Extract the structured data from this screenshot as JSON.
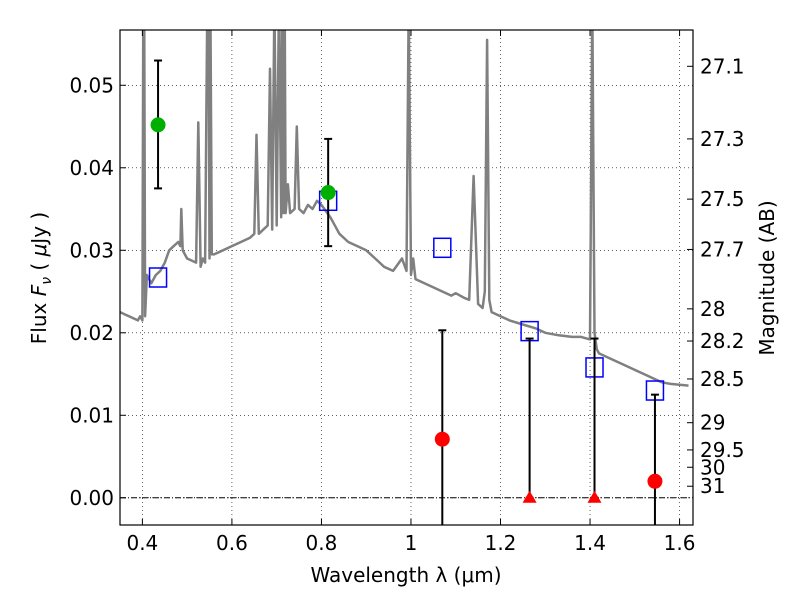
{
  "chart_data": {
    "type": "scatter",
    "xlabel": "Wavelength  λ (μm)",
    "ylabel": "Flux  F_ν  ( μJy )",
    "y2label": "Magnitude (AB)",
    "xlim": [
      0.35,
      1.63
    ],
    "ylim": [
      -0.0033,
      0.0567
    ],
    "grid": true,
    "x_ticks": [
      0.4,
      0.6,
      0.8,
      1.0,
      1.2,
      1.4,
      1.6
    ],
    "x_tick_labels": [
      "0.4",
      "0.6",
      "0.8",
      "1",
      "1.2",
      "1.4",
      "1.6"
    ],
    "y_ticks": [
      0.0,
      0.01,
      0.02,
      0.03,
      0.04,
      0.05
    ],
    "y_tick_labels": [
      "0.00",
      "0.01",
      "0.02",
      "0.03",
      "0.04",
      "0.05"
    ],
    "y2_ticks": [
      {
        "label": "27.1",
        "flux": 0.0523
      },
      {
        "label": "27.3",
        "flux": 0.0435
      },
      {
        "label": "27.5",
        "flux": 0.0362
      },
      {
        "label": "27.7",
        "flux": 0.0301
      },
      {
        "label": "28",
        "flux": 0.0229
      },
      {
        "label": "28.2",
        "flux": 0.019
      },
      {
        "label": "28.5",
        "flux": 0.0144
      },
      {
        "label": "29",
        "flux": 0.0091
      },
      {
        "label": "29.5",
        "flux": 0.0058
      },
      {
        "label": "30",
        "flux": 0.0037
      },
      {
        "label": "31",
        "flux": 0.0014
      }
    ],
    "series": [
      {
        "kind": "model-spectrum",
        "color": "#808080",
        "x": [
          0.35,
          0.37,
          0.39,
          0.395,
          0.4,
          0.402,
          0.404,
          0.406,
          0.41,
          0.42,
          0.43,
          0.44,
          0.45,
          0.46,
          0.47,
          0.48,
          0.485,
          0.487,
          0.49,
          0.5,
          0.52,
          0.525,
          0.53,
          0.535,
          0.54,
          0.545,
          0.548,
          0.55,
          0.552,
          0.555,
          0.56,
          0.58,
          0.6,
          0.62,
          0.64,
          0.65,
          0.655,
          0.66,
          0.67,
          0.68,
          0.685,
          0.69,
          0.695,
          0.7,
          0.705,
          0.71,
          0.712,
          0.715,
          0.718,
          0.72,
          0.725,
          0.73,
          0.74,
          0.745,
          0.75,
          0.76,
          0.77,
          0.78,
          0.79,
          0.8,
          0.82,
          0.84,
          0.86,
          0.88,
          0.9,
          0.92,
          0.94,
          0.96,
          0.98,
          0.99,
          0.995,
          1.0,
          1.005,
          1.01,
          1.03,
          1.05,
          1.07,
          1.09,
          1.1,
          1.12,
          1.13,
          1.14,
          1.15,
          1.16,
          1.165,
          1.17,
          1.175,
          1.18,
          1.2,
          1.22,
          1.25,
          1.28,
          1.3,
          1.33,
          1.36,
          1.38,
          1.4,
          1.405,
          1.41,
          1.415,
          1.42,
          1.44,
          1.46,
          1.48,
          1.5,
          1.52,
          1.54,
          1.56,
          1.58,
          1.6,
          1.62
        ],
        "y": [
          0.0225,
          0.022,
          0.0215,
          0.022,
          0.0215,
          0.06,
          0.06,
          0.022,
          0.027,
          0.026,
          0.027,
          0.0275,
          0.0285,
          0.03,
          0.0305,
          0.031,
          0.0305,
          0.035,
          0.03,
          0.029,
          0.0285,
          0.0455,
          0.028,
          0.029,
          0.0285,
          0.06,
          0.06,
          0.029,
          0.06,
          0.0295,
          0.0295,
          0.03,
          0.0305,
          0.031,
          0.0315,
          0.032,
          0.044,
          0.032,
          0.0325,
          0.033,
          0.052,
          0.0325,
          0.06,
          0.033,
          0.06,
          0.034,
          0.06,
          0.0345,
          0.06,
          0.0345,
          0.038,
          0.0345,
          0.035,
          0.045,
          0.035,
          0.0345,
          0.0355,
          0.035,
          0.036,
          0.0355,
          0.034,
          0.032,
          0.031,
          0.0305,
          0.03,
          0.029,
          0.028,
          0.0275,
          0.029,
          0.0275,
          0.06,
          0.027,
          0.029,
          0.0265,
          0.026,
          0.0255,
          0.025,
          0.0245,
          0.0248,
          0.0242,
          0.024,
          0.039,
          0.0235,
          0.023,
          0.025,
          0.0555,
          0.024,
          0.0225,
          0.022,
          0.0215,
          0.021,
          0.0205,
          0.02,
          0.0197,
          0.0195,
          0.0195,
          0.0192,
          0.06,
          0.02,
          0.018,
          0.0175,
          0.017,
          0.0165,
          0.016,
          0.0155,
          0.015,
          0.0145,
          0.014,
          0.0138,
          0.0137,
          0.0136
        ]
      },
      {
        "kind": "model-photometry",
        "marker": "open-square",
        "color": "#0000ff",
        "x": [
          0.435,
          0.815,
          1.07,
          1.265,
          1.41,
          1.545
        ],
        "y": [
          0.0267,
          0.036,
          0.0303,
          0.0202,
          0.0158,
          0.013
        ]
      },
      {
        "kind": "detections",
        "marker": "filled-circle",
        "color": "#00b000",
        "x": [
          0.435,
          0.815
        ],
        "y": [
          0.0452,
          0.037
        ],
        "err_low": [
          0.0375,
          0.0305
        ],
        "err_high": [
          0.053,
          0.0435
        ]
      },
      {
        "kind": "non-detections",
        "marker": "filled-circle",
        "color": "#ff0000",
        "x": [
          1.07,
          1.545
        ],
        "y": [
          0.0071,
          0.002
        ],
        "err_low": [
          -0.004,
          -0.004
        ],
        "err_high": [
          0.0203,
          0.0125
        ]
      },
      {
        "kind": "upper-limits",
        "marker": "filled-triangle",
        "color": "#ff0000",
        "x": [
          1.265,
          1.41
        ],
        "y": [
          0.0,
          0.0
        ],
        "err_low": [
          0.0,
          0.0
        ],
        "err_high": [
          0.0193,
          0.0193
        ]
      }
    ]
  }
}
